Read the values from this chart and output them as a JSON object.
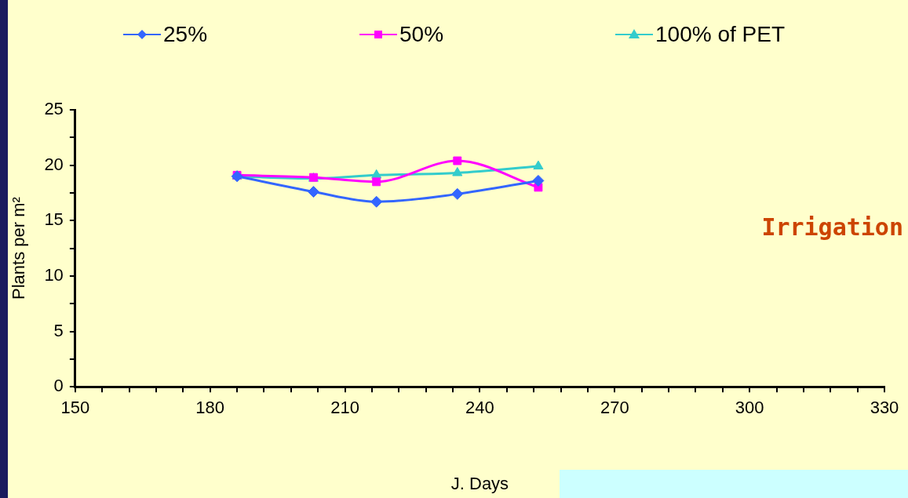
{
  "chart_data": {
    "type": "line",
    "xlabel": "J. Days",
    "ylabel": "Plants per m²",
    "annotations": [
      "Irrigation"
    ],
    "x": [
      186,
      203,
      217,
      235,
      253
    ],
    "series": [
      {
        "name": "25%",
        "color": "#3366ff",
        "marker": "diamond",
        "values": [
          19.0,
          17.6,
          16.7,
          17.4,
          18.6
        ]
      },
      {
        "name": "50%",
        "color": "#ff00ff",
        "marker": "square",
        "values": [
          19.1,
          18.9,
          18.5,
          20.4,
          18.0
        ]
      },
      {
        "name": "100% of PET",
        "color": "#33cccc",
        "marker": "triangle",
        "values": [
          19.0,
          18.8,
          19.1,
          19.3,
          19.9
        ]
      }
    ],
    "xlim": [
      150,
      330
    ],
    "xticks": [
      150,
      {
        "value": 156,
        "label": null
      },
      {
        "value": 162,
        "label": null
      },
      {
        "value": 168,
        "label": null
      },
      {
        "value": 174,
        "label": null
      },
      180,
      {
        "value": 186,
        "label": null
      },
      {
        "value": 192,
        "label": null
      },
      {
        "value": 198,
        "label": null
      },
      {
        "value": 204,
        "label": null
      },
      210,
      {
        "value": 216,
        "label": null
      },
      {
        "value": 222,
        "label": null
      },
      {
        "value": 228,
        "label": null
      },
      {
        "value": 234,
        "label": null
      },
      240,
      {
        "value": 246,
        "label": null
      },
      {
        "value": 252,
        "label": null
      },
      {
        "value": 258,
        "label": null
      },
      {
        "value": 264,
        "label": null
      },
      270,
      {
        "value": 276,
        "label": null
      },
      {
        "value": 282,
        "label": null
      },
      {
        "value": 288,
        "label": null
      },
      {
        "value": 294,
        "label": null
      },
      300,
      {
        "value": 306,
        "label": null
      },
      {
        "value": 312,
        "label": null
      },
      {
        "value": 318,
        "label": null
      },
      {
        "value": 324,
        "label": null
      },
      330
    ],
    "ylim": [
      0,
      25
    ],
    "yticks": [
      0,
      {
        "value": 2.5,
        "label": null
      },
      5,
      {
        "value": 7.5,
        "label": null
      },
      10,
      {
        "value": 12.5,
        "label": null
      },
      15,
      {
        "value": 17.5,
        "label": null
      },
      20,
      {
        "value": 22.5,
        "label": null
      },
      25
    ],
    "grid": false,
    "legend": "top",
    "line_style": "solid"
  }
}
